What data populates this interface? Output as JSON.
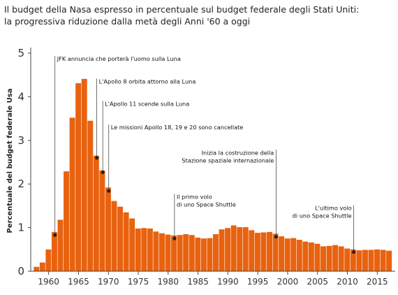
{
  "chart_data": {
    "type": "bar",
    "title": "Il budget della Nasa espresso in percentuale sul budget federale degli Stati Uniti:",
    "subtitle": "la progressiva riduzione dalla metà degli Anni '60 a oggi",
    "ylabel": "Percentuale del budget federale Usa",
    "xlabel": "",
    "ylim": [
      0,
      5
    ],
    "xlim": [
      1957,
      2018
    ],
    "grid": false,
    "legend": "none",
    "bar_color": "#e8620f",
    "xticks": [
      1960,
      1965,
      1970,
      1975,
      1980,
      1985,
      1990,
      1995,
      2000,
      2005,
      2010,
      2015
    ],
    "yticks": [
      0,
      1,
      2,
      3,
      4,
      5
    ],
    "x": [
      1958,
      1959,
      1960,
      1961,
      1962,
      1963,
      1964,
      1965,
      1966,
      1967,
      1968,
      1969,
      1970,
      1971,
      1972,
      1973,
      1974,
      1975,
      1976,
      1977,
      1978,
      1979,
      1980,
      1981,
      1982,
      1983,
      1984,
      1985,
      1986,
      1987,
      1988,
      1989,
      1990,
      1991,
      1992,
      1993,
      1994,
      1995,
      1996,
      1997,
      1998,
      1999,
      2000,
      2001,
      2002,
      2003,
      2004,
      2005,
      2006,
      2007,
      2008,
      2009,
      2010,
      2011,
      2012,
      2013,
      2014,
      2015,
      2016,
      2017
    ],
    "values": [
      0.1,
      0.2,
      0.5,
      0.9,
      1.18,
      2.29,
      3.52,
      4.31,
      4.41,
      3.45,
      2.65,
      2.31,
      1.92,
      1.61,
      1.48,
      1.35,
      1.21,
      0.98,
      0.99,
      0.98,
      0.91,
      0.87,
      0.84,
      0.82,
      0.83,
      0.85,
      0.83,
      0.77,
      0.75,
      0.76,
      0.85,
      0.96,
      0.99,
      1.05,
      1.01,
      1.01,
      0.94,
      0.88,
      0.89,
      0.9,
      0.86,
      0.8,
      0.75,
      0.76,
      0.72,
      0.68,
      0.66,
      0.63,
      0.57,
      0.58,
      0.6,
      0.57,
      0.52,
      0.5,
      0.48,
      0.49,
      0.49,
      0.5,
      0.49,
      0.47
    ],
    "annotations": [
      {
        "year": 1961,
        "value": 0.83,
        "label_lines": [
          "JFK annuncia che porterà l'uomo sulla Luna"
        ],
        "label_value": 4.87
      },
      {
        "year": 1968,
        "value": 2.6,
        "label_lines": [
          "L'Apollo 8 orbita attorno alla Luna"
        ],
        "label_value": 4.35
      },
      {
        "year": 1969,
        "value": 2.27,
        "label_lines": [
          "L'Apollo 11 scende sulla Luna"
        ],
        "label_value": 3.84
      },
      {
        "year": 1970,
        "value": 1.84,
        "label_lines": [
          "Le missioni Apollo 18, 19 e 20 sono cancellate"
        ],
        "label_value": 3.3
      },
      {
        "year": 1981,
        "value": 0.75,
        "label_lines": [
          "Il primo volo",
          "di uno Space Shuttle"
        ],
        "label_value": 1.71
      },
      {
        "year": 1998,
        "value": 0.79,
        "label_lines": [
          "Inizia la costruzione della",
          "Stazione spaziale internazionale"
        ],
        "label_value": 2.72
      },
      {
        "year": 2011,
        "value": 0.44,
        "label_lines": [
          "L'ultimo volo",
          "di uno Space Shuttle"
        ],
        "label_value": 1.45
      }
    ]
  }
}
